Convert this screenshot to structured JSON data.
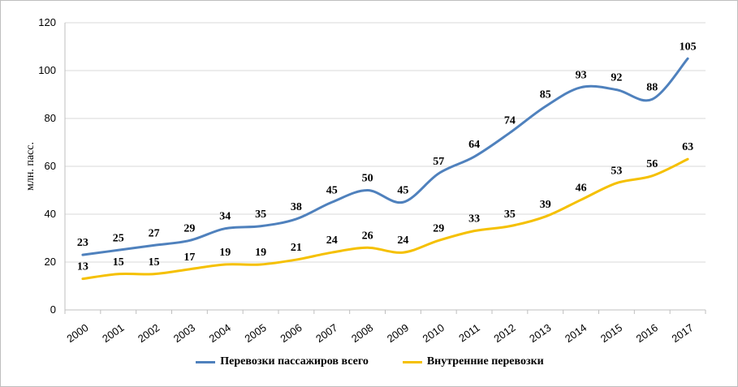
{
  "chart_data": {
    "type": "line",
    "x": [
      "2000",
      "2001",
      "2002",
      "2003",
      "2004",
      "2005",
      "2006",
      "2007",
      "2008",
      "2009",
      "2010",
      "2011",
      "2012",
      "2013",
      "2014",
      "2015",
      "2016",
      "2017"
    ],
    "series": [
      {
        "name": "Перевозки пассажиров всего",
        "color": "#4f81bd",
        "values": [
          23,
          25,
          27,
          29,
          34,
          35,
          38,
          45,
          50,
          45,
          57,
          64,
          74,
          85,
          93,
          92,
          88,
          105
        ]
      },
      {
        "name": "Внутренние перевозки",
        "color": "#f5c000",
        "values": [
          13,
          15,
          15,
          17,
          19,
          19,
          21,
          24,
          26,
          24,
          29,
          33,
          35,
          39,
          46,
          53,
          56,
          63
        ]
      }
    ],
    "ylabel": "млн. пасс.",
    "ylim": [
      0,
      120
    ],
    "yticks": [
      0,
      20,
      40,
      60,
      80,
      100,
      120
    ],
    "grid": true,
    "data_labels": true,
    "legend_position": "bottom"
  }
}
